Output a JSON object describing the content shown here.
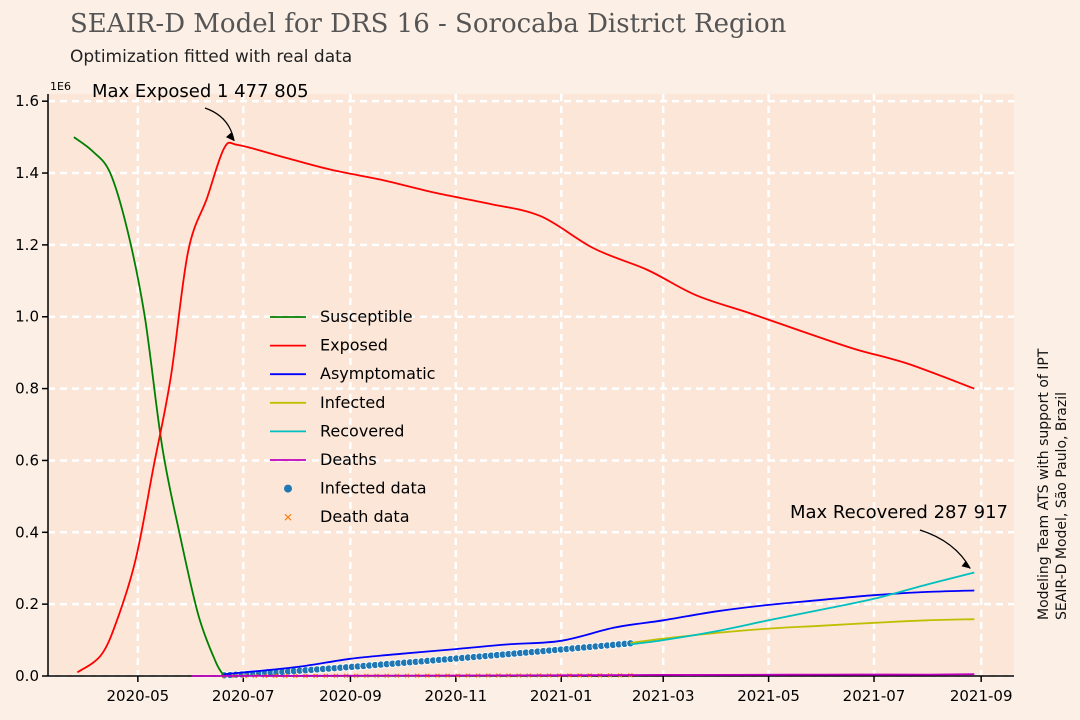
{
  "chart_data": {
    "type": "line",
    "title": "SEAIR-D Model for DRS 16 - Sorocaba District Region",
    "subtitle": "Optimization fitted with real data",
    "y_exponent_label": "1E6",
    "side_note": [
      "Modeling Team ATS with support of IPT",
      "SEAIR-D Model, São Paulo, Brazil"
    ],
    "xlim": [
      "2020-03-10",
      "2021-09-20"
    ],
    "ylim": [
      0,
      1.62
    ],
    "x_ticks": [
      "2020-05",
      "2020-07",
      "2020-09",
      "2020-11",
      "2021-01",
      "2021-03",
      "2021-05",
      "2021-07",
      "2021-09"
    ],
    "y_ticks": [
      "0.0",
      "0.2",
      "0.4",
      "0.6",
      "0.8",
      "1.0",
      "1.2",
      "1.4",
      "1.6"
    ],
    "grid": true,
    "legend_position": "center-left",
    "colors": {
      "background": "#fcefe6",
      "plot_background": "#fbe6d8",
      "grid": "#ffffff",
      "susceptible": "#008000",
      "exposed": "#ff0000",
      "asymptomatic": "#0000ff",
      "infected": "#bfbf00",
      "recovered": "#00bfbf",
      "deaths": "#bf00bf",
      "infected_data": "#1f77b4",
      "death_data": "#ff7f0e"
    },
    "series": [
      {
        "name": "Susceptible",
        "key": "susceptible",
        "x": [
          "2020-03-25",
          "2020-04-05",
          "2020-04-15",
          "2020-04-25",
          "2020-05-05",
          "2020-05-15",
          "2020-05-25",
          "2020-06-05",
          "2020-06-15",
          "2020-06-20"
        ],
        "y": [
          1.5,
          1.46,
          1.4,
          1.24,
          1.0,
          0.64,
          0.4,
          0.17,
          0.04,
          0.0
        ]
      },
      {
        "name": "Exposed",
        "key": "exposed",
        "x": [
          "2020-03-27",
          "2020-04-10",
          "2020-04-20",
          "2020-04-30",
          "2020-05-10",
          "2020-05-20",
          "2020-05-30",
          "2020-06-10",
          "2020-06-20",
          "2020-06-28",
          "2020-07-20",
          "2020-08-20",
          "2020-09-20",
          "2020-10-20",
          "2020-11-20",
          "2020-12-20",
          "2021-01-20",
          "2021-02-20",
          "2021-03-20",
          "2021-04-20",
          "2021-05-20",
          "2021-06-20",
          "2021-07-20",
          "2021-08-28"
        ],
        "y": [
          0.01,
          0.06,
          0.17,
          0.33,
          0.58,
          0.83,
          1.18,
          1.33,
          1.47,
          1.478,
          1.45,
          1.41,
          1.38,
          1.345,
          1.315,
          1.28,
          1.19,
          1.13,
          1.06,
          1.01,
          0.96,
          0.91,
          0.87,
          0.8
        ]
      },
      {
        "name": "Asymptomatic",
        "key": "asymptomatic",
        "x": [
          "2020-06-20",
          "2020-08-01",
          "2020-09-01",
          "2020-10-01",
          "2020-11-01",
          "2020-12-01",
          "2021-01-01",
          "2021-02-01",
          "2021-03-01",
          "2021-04-01",
          "2021-05-01",
          "2021-06-01",
          "2021-07-01",
          "2021-08-01",
          "2021-08-28"
        ],
        "y": [
          0.005,
          0.025,
          0.048,
          0.062,
          0.075,
          0.088,
          0.098,
          0.135,
          0.155,
          0.18,
          0.198,
          0.212,
          0.225,
          0.234,
          0.238
        ]
      },
      {
        "name": "Infected",
        "key": "infected",
        "x": [
          "2021-02-10",
          "2021-03-01",
          "2021-04-01",
          "2021-05-01",
          "2021-06-01",
          "2021-07-01",
          "2021-08-01",
          "2021-08-28"
        ],
        "y": [
          0.092,
          0.104,
          0.12,
          0.132,
          0.14,
          0.148,
          0.155,
          0.158
        ]
      },
      {
        "name": "Recovered",
        "key": "recovered",
        "x": [
          "2021-02-10",
          "2021-03-01",
          "2021-04-01",
          "2021-05-01",
          "2021-06-01",
          "2021-07-01",
          "2021-08-01",
          "2021-08-28"
        ],
        "y": [
          0.088,
          0.1,
          0.125,
          0.155,
          0.185,
          0.215,
          0.255,
          0.288
        ]
      },
      {
        "name": "Deaths",
        "key": "deaths",
        "x": [
          "2020-06-01",
          "2020-10-01",
          "2021-01-01",
          "2021-03-01",
          "2021-04-01",
          "2021-06-01",
          "2021-08-01",
          "2021-08-28"
        ],
        "y": [
          0.0,
          0.001,
          0.002,
          0.003,
          0.003,
          0.004,
          0.004,
          0.005
        ]
      }
    ],
    "infected_data": {
      "name": "Infected data",
      "x_start": "2020-06-20",
      "x_end": "2021-02-10",
      "y_start": 0.002,
      "y_end": 0.091
    },
    "death_data": {
      "name": "Death data",
      "x_start": "2020-06-20",
      "x_end": "2021-02-10",
      "y_start": 0.0,
      "y_end": 0.002
    },
    "annotations": [
      {
        "label": "Max Exposed 1 477 805",
        "x": "2020-06-28",
        "y": 1.478
      },
      {
        "label": "Max Recovered 287 917",
        "x": "2021-08-28",
        "y": 0.288
      }
    ]
  }
}
